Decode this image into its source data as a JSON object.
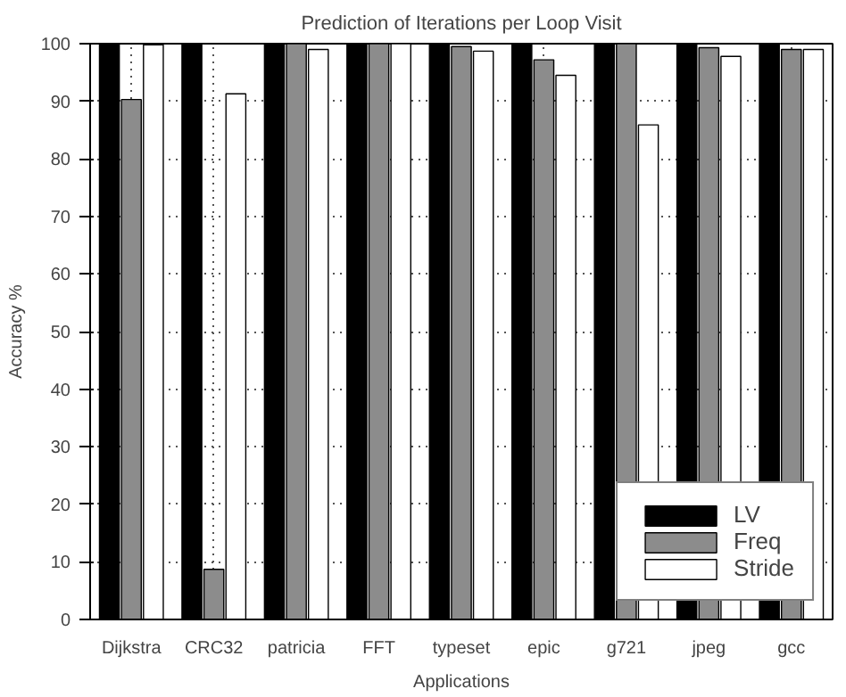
{
  "chart_data": {
    "type": "bar",
    "title": "Prediction of Iterations per Loop Visit",
    "xlabel": "Applications",
    "ylabel": "Accuracy %",
    "categories": [
      "Dijkstra",
      "CRC32",
      "patricia",
      "FFT",
      "typeset",
      "epic",
      "g721",
      "jpeg",
      "gcc"
    ],
    "series": [
      {
        "name": "LV",
        "color": "#000000",
        "values": [
          100,
          100,
          100,
          100,
          100,
          100,
          100,
          100,
          100
        ]
      },
      {
        "name": "Freq",
        "color": "#8c8c8c",
        "values": [
          90.3,
          8.7,
          100,
          100,
          99.5,
          97.2,
          100,
          99.3,
          99
        ]
      },
      {
        "name": "Stride",
        "color": "#ffffff",
        "values": [
          99.8,
          91.3,
          99,
          100,
          98.7,
          94.5,
          85.9,
          97.8,
          99
        ]
      }
    ],
    "ylim": [
      0,
      100
    ],
    "yticks": [
      0,
      10,
      20,
      30,
      40,
      50,
      60,
      70,
      80,
      90,
      100
    ],
    "grid": true,
    "legend": "bottom right"
  }
}
